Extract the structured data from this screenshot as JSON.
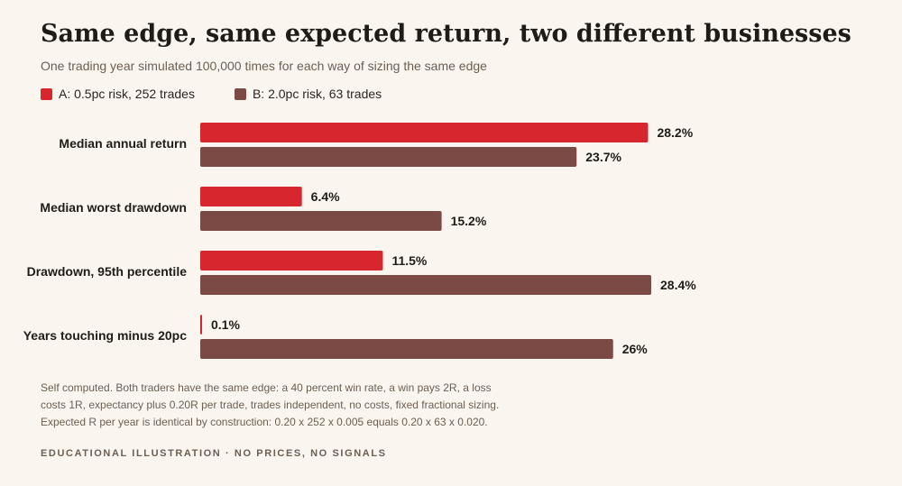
{
  "header": {
    "title": "Same edge, same expected return, two different businesses",
    "subtitle": "One trading year simulated 100,000 times for each way of sizing the same edge"
  },
  "legend": [
    {
      "label": "A: 0.5pc risk, 252 trades",
      "color": "#d7262d"
    },
    {
      "label": "B: 2.0pc risk, 63 trades",
      "color": "#7b4a45"
    }
  ],
  "chart_data": {
    "type": "bar",
    "orientation": "horizontal",
    "categories": [
      "Median annual return",
      "Median worst drawdown",
      "Drawdown, 95th percentile",
      "Years touching minus 20pc"
    ],
    "series": [
      {
        "name": "A: 0.5pc risk, 252 trades",
        "color": "#d7262d",
        "values": [
          28.2,
          6.4,
          11.5,
          0.1
        ],
        "labels": [
          "28.2%",
          "6.4%",
          "11.5%",
          "0.1%"
        ]
      },
      {
        "name": "B: 2.0pc risk, 63 trades",
        "color": "#7b4a45",
        "values": [
          23.7,
          15.2,
          28.4,
          26
        ],
        "labels": [
          "23.7%",
          "15.2%",
          "28.4%",
          "26%"
        ]
      }
    ],
    "xlim": [
      0,
      28.4
    ],
    "grid": false,
    "legend_position": "top-left"
  },
  "notes": {
    "line1": "Self computed. Both traders have the same edge: a 40 percent win rate, a win pays 2R, a loss",
    "line2": "costs 1R, expectancy plus 0.20R per trade, trades independent, no costs, fixed fractional sizing.",
    "line3": "Expected R per year is identical by construction: 0.20 x 252 x 0.005 equals 0.20 x 63 x 0.020."
  },
  "footer": "EDUCATIONAL ILLUSTRATION · NO PRICES, NO SIGNALS"
}
